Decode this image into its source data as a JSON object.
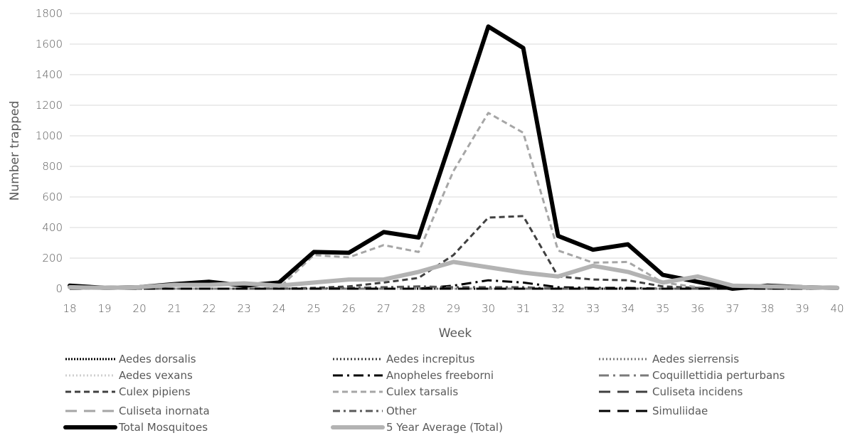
{
  "chart_data": {
    "type": "line",
    "xlabel": "Week",
    "ylabel": "Number trapped",
    "ylim": [
      0,
      1800
    ],
    "yticks": [
      0,
      200,
      400,
      600,
      800,
      1000,
      1200,
      1400,
      1600,
      1800
    ],
    "grid": "horizontal",
    "legend_placement": "bottom",
    "x": [
      18,
      19,
      20,
      21,
      22,
      23,
      24,
      25,
      26,
      27,
      28,
      29,
      30,
      31,
      32,
      33,
      34,
      35,
      36,
      37,
      38,
      39,
      40
    ],
    "series": [
      {
        "name": "Aedes dorsalis",
        "color": "#000000",
        "style": "dotted-dense",
        "values": [
          0,
          0,
          0,
          0,
          0,
          0,
          0,
          0,
          0,
          0,
          0,
          0,
          0,
          0,
          0,
          0,
          0,
          0,
          0,
          0,
          0,
          0,
          0
        ]
      },
      {
        "name": "Aedes increpitus",
        "color": "#3a3a3a",
        "style": "dotted",
        "values": [
          0,
          0,
          0,
          0,
          0,
          0,
          0,
          0,
          0,
          0,
          0,
          0,
          0,
          0,
          0,
          0,
          0,
          0,
          0,
          0,
          0,
          0,
          0
        ]
      },
      {
        "name": "Aedes sierrensis",
        "color": "#7a7a7a",
        "style": "dotted",
        "values": [
          0,
          0,
          0,
          0,
          0,
          0,
          0,
          0,
          0,
          0,
          0,
          0,
          0,
          0,
          0,
          0,
          0,
          0,
          0,
          0,
          0,
          0,
          0
        ]
      },
      {
        "name": "Aedes vexans",
        "color": "#cfcfcf",
        "style": "dotted",
        "values": [
          0,
          0,
          0,
          0,
          0,
          0,
          0,
          0,
          0,
          0,
          0,
          0,
          0,
          0,
          0,
          0,
          0,
          0,
          0,
          0,
          0,
          0,
          0
        ]
      },
      {
        "name": "Anopheles freeborni",
        "color": "#000000",
        "style": "dashdot-long",
        "values": [
          0,
          0,
          0,
          0,
          0,
          0,
          0,
          0,
          0,
          0,
          0,
          20,
          55,
          40,
          10,
          5,
          5,
          0,
          0,
          0,
          0,
          0,
          0
        ]
      },
      {
        "name": "Coquillettidia perturbans",
        "color": "#7a7a7a",
        "style": "dashdot-long",
        "values": [
          0,
          0,
          0,
          0,
          0,
          0,
          0,
          0,
          0,
          0,
          0,
          0,
          0,
          0,
          0,
          0,
          0,
          0,
          0,
          0,
          0,
          0,
          0
        ]
      },
      {
        "name": "Culex pipiens",
        "color": "#404040",
        "style": "dashed",
        "values": [
          0,
          0,
          0,
          0,
          0,
          0,
          0,
          5,
          15,
          40,
          70,
          220,
          465,
          475,
          80,
          60,
          55,
          15,
          5,
          0,
          0,
          0,
          0
        ]
      },
      {
        "name": "Culex tarsalis",
        "color": "#a6a6a6",
        "style": "dashed",
        "values": [
          0,
          0,
          0,
          0,
          0,
          0,
          5,
          220,
          205,
          285,
          240,
          770,
          1150,
          1020,
          250,
          170,
          175,
          40,
          10,
          0,
          0,
          0,
          0
        ]
      },
      {
        "name": "Culiseta incidens",
        "color": "#404040",
        "style": "dashed-long",
        "values": [
          0,
          0,
          0,
          0,
          0,
          0,
          0,
          0,
          0,
          0,
          0,
          0,
          0,
          0,
          0,
          0,
          0,
          0,
          0,
          0,
          0,
          0,
          0
        ]
      },
      {
        "name": "Culiseta inornata",
        "color": "#a6a6a6",
        "style": "dashed-long",
        "values": [
          0,
          0,
          0,
          0,
          0,
          0,
          0,
          0,
          0,
          0,
          0,
          0,
          0,
          0,
          0,
          0,
          0,
          0,
          0,
          0,
          0,
          0,
          0
        ]
      },
      {
        "name": "Other",
        "color": "#595959",
        "style": "dashdot",
        "values": [
          0,
          0,
          0,
          0,
          0,
          0,
          0,
          0,
          5,
          10,
          15,
          10,
          10,
          10,
          0,
          0,
          0,
          0,
          0,
          0,
          0,
          0,
          0
        ]
      },
      {
        "name": "Simuliidae",
        "color": "#000000",
        "style": "dashed-long",
        "values": [
          0,
          0,
          0,
          0,
          0,
          0,
          0,
          0,
          0,
          0,
          0,
          0,
          0,
          0,
          0,
          0,
          0,
          0,
          0,
          0,
          0,
          0,
          0
        ]
      },
      {
        "name": "Total Mosquitoes",
        "color": "#000000",
        "style": "solid-thick",
        "values": [
          20,
          5,
          10,
          30,
          45,
          20,
          40,
          240,
          235,
          370,
          335,
          1020,
          1715,
          1575,
          345,
          255,
          290,
          90,
          45,
          0,
          20,
          10,
          5
        ]
      },
      {
        "name": "5 Year Average (Total)",
        "color": "#b3b3b3",
        "style": "solid-thick",
        "values": [
          10,
          5,
          10,
          25,
          25,
          35,
          20,
          40,
          60,
          60,
          110,
          175,
          140,
          105,
          80,
          150,
          110,
          40,
          80,
          20,
          15,
          10,
          5
        ]
      }
    ]
  }
}
